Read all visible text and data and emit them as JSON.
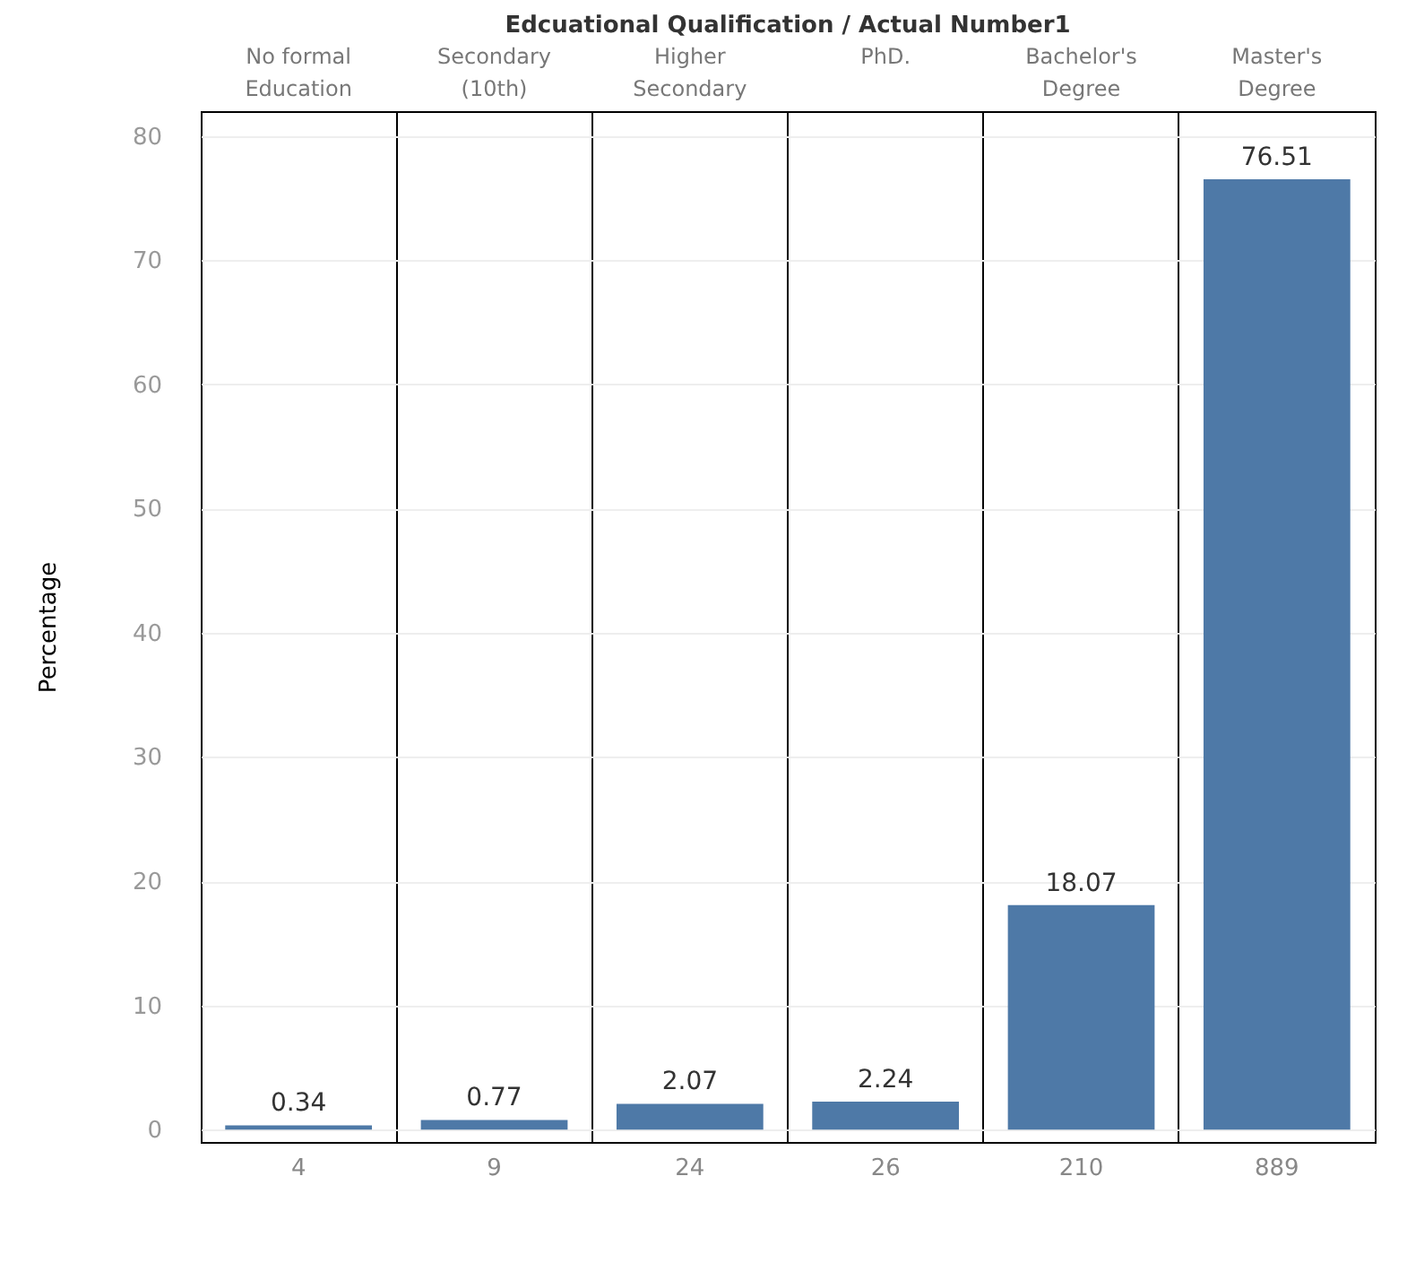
{
  "chart_data": {
    "type": "bar",
    "title": "Edcuational Qualification / Actual Number1",
    "ylabel": "Percentage",
    "categories": [
      "No formal Education",
      "Secondary (10th)",
      "Higher Secondary",
      "PhD.",
      "Bachelor's Degree",
      "Master's Degree"
    ],
    "values": [
      0.34,
      0.77,
      2.07,
      2.24,
      18.07,
      76.51
    ],
    "color": "#4e79a7",
    "ylim": [
      -1,
      82
    ],
    "yticks": [
      0,
      10,
      20,
      30,
      40,
      50,
      60,
      70,
      80
    ],
    "grid": "y",
    "data_labels": true,
    "annotations": [
      "4",
      "9",
      "24",
      "26",
      "210",
      "889"
    ]
  }
}
